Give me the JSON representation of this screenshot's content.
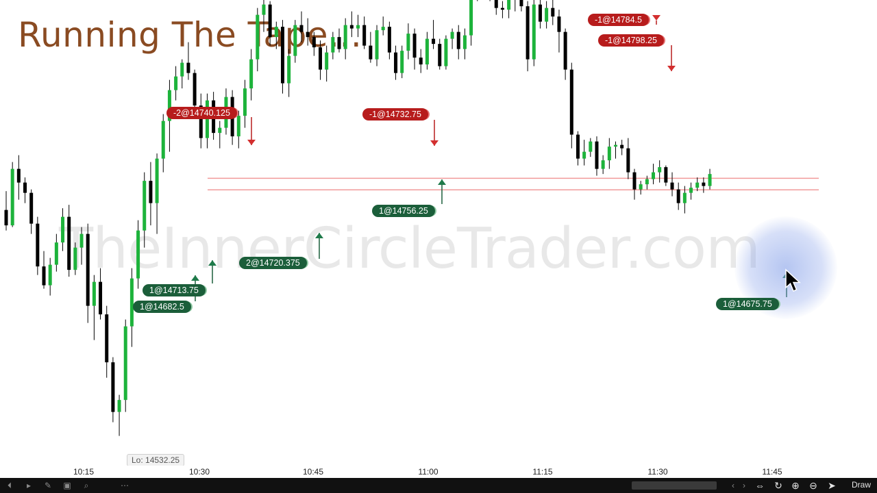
{
  "title": "Running The Tape...",
  "watermark": "TheInnerCircleTrader.com",
  "colors": {
    "bull": "#1db33b",
    "bear": "#000000",
    "sell_badge": "#b71c1c",
    "buy_badge": "#1b5e3a",
    "level_line": "#f19a9a",
    "title": "#8a4b22"
  },
  "chart_data": {
    "type": "candlestick",
    "x_ticks": [
      "10:15",
      "10:30",
      "10:45",
      "11:00",
      "11:15",
      "11:30",
      "11:45"
    ],
    "ylim": [
      14520,
      14800
    ],
    "grid": false,
    "candles": [
      [
        14664,
        14675,
        14652,
        14655
      ],
      [
        14655,
        14692,
        14654,
        14688
      ],
      [
        14688,
        14696,
        14670,
        14680
      ],
      [
        14680,
        14683,
        14668,
        14674
      ],
      [
        14674,
        14676,
        14650,
        14656
      ],
      [
        14656,
        14660,
        14626,
        14631
      ],
      [
        14631,
        14640,
        14618,
        14620
      ],
      [
        14620,
        14636,
        14614,
        14632
      ],
      [
        14632,
        14650,
        14628,
        14645
      ],
      [
        14645,
        14665,
        14640,
        14660
      ],
      [
        14660,
        14667,
        14625,
        14629
      ],
      [
        14629,
        14645,
        14626,
        14642
      ],
      [
        14642,
        14654,
        14632,
        14650
      ],
      [
        14650,
        14656,
        14598,
        14608
      ],
      [
        14608,
        14626,
        14588,
        14622
      ],
      [
        14622,
        14630,
        14600,
        14603
      ],
      [
        14603,
        14608,
        14566,
        14575
      ],
      [
        14575,
        14578,
        14540,
        14546
      ],
      [
        14546,
        14556,
        14532,
        14553
      ],
      [
        14553,
        14600,
        14546,
        14596
      ],
      [
        14596,
        14630,
        14584,
        14624
      ],
      [
        14624,
        14658,
        14618,
        14652
      ],
      [
        14652,
        14686,
        14642,
        14681
      ],
      [
        14681,
        14692,
        14655,
        14668
      ],
      [
        14668,
        14697,
        14650,
        14694
      ],
      [
        14694,
        14720,
        14686,
        14716
      ],
      [
        14716,
        14740,
        14698,
        14734
      ],
      [
        14734,
        14748,
        14728,
        14742
      ],
      [
        14742,
        14752,
        14735,
        14750
      ],
      [
        14750,
        14762,
        14740,
        14744
      ],
      [
        14744,
        14746,
        14720,
        14725
      ],
      [
        14725,
        14732,
        14700,
        14706
      ],
      [
        14706,
        14732,
        14700,
        14728
      ],
      [
        14728,
        14733,
        14705,
        14709
      ],
      [
        14709,
        14716,
        14700,
        14712
      ],
      [
        14712,
        14735,
        14708,
        14730
      ],
      [
        14730,
        14734,
        14702,
        14707
      ],
      [
        14707,
        14722,
        14700,
        14719
      ],
      [
        14719,
        14740,
        14712,
        14735
      ],
      [
        14735,
        14758,
        14728,
        14752
      ],
      [
        14752,
        14782,
        14745,
        14778
      ],
      [
        14778,
        14789,
        14768,
        14784
      ],
      [
        14784,
        14786,
        14760,
        14765
      ],
      [
        14765,
        14774,
        14758,
        14771
      ],
      [
        14771,
        14775,
        14732,
        14738
      ],
      [
        14738,
        14758,
        14730,
        14754
      ],
      [
        14754,
        14775,
        14750,
        14772
      ],
      [
        14772,
        14780,
        14762,
        14768
      ],
      [
        14768,
        14776,
        14760,
        14765
      ],
      [
        14765,
        14768,
        14754,
        14759
      ],
      [
        14759,
        14763,
        14740,
        14746
      ],
      [
        14746,
        14760,
        14739,
        14756
      ],
      [
        14756,
        14768,
        14752,
        14765
      ],
      [
        14765,
        14770,
        14756,
        14758
      ],
      [
        14758,
        14776,
        14752,
        14772
      ],
      [
        14772,
        14780,
        14765,
        14770
      ],
      [
        14770,
        14778,
        14765,
        14772
      ],
      [
        14772,
        14777,
        14758,
        14760
      ],
      [
        14760,
        14768,
        14750,
        14752
      ],
      [
        14752,
        14772,
        14748,
        14769
      ],
      [
        14769,
        14777,
        14766,
        14771
      ],
      [
        14771,
        14774,
        14752,
        14756
      ],
      [
        14756,
        14760,
        14740,
        14744
      ],
      [
        14744,
        14760,
        14741,
        14757
      ],
      [
        14757,
        14773,
        14752,
        14767
      ],
      [
        14767,
        14770,
        14746,
        14753
      ],
      [
        14753,
        14758,
        14744,
        14749
      ],
      [
        14749,
        14768,
        14746,
        14764
      ],
      [
        14764,
        14775,
        14758,
        14761
      ],
      [
        14761,
        14764,
        14746,
        14748
      ],
      [
        14748,
        14766,
        14746,
        14764
      ],
      [
        14764,
        14770,
        14758,
        14768
      ],
      [
        14768,
        14772,
        14752,
        14758
      ],
      [
        14758,
        14770,
        14752,
        14766
      ],
      [
        14766,
        14795,
        14760,
        14791
      ],
      [
        14791,
        14796,
        14786,
        14793
      ],
      [
        14793,
        14798,
        14790,
        14795
      ],
      [
        14795,
        14797,
        14786,
        14788
      ],
      [
        14788,
        14793,
        14778,
        14782
      ],
      [
        14782,
        14786,
        14776,
        14781
      ],
      [
        14781,
        14790,
        14776,
        14787
      ],
      [
        14787,
        14797,
        14780,
        14791
      ],
      [
        14791,
        14792,
        14780,
        14783
      ],
      [
        14783,
        14786,
        14745,
        14752
      ],
      [
        14752,
        14788,
        14748,
        14784
      ],
      [
        14784,
        14790,
        14770,
        14774
      ],
      [
        14774,
        14786,
        14770,
        14782
      ],
      [
        14782,
        14788,
        14772,
        14777
      ],
      [
        14777,
        14781,
        14756,
        14768
      ],
      [
        14768,
        14770,
        14740,
        14746
      ],
      [
        14746,
        14750,
        14700,
        14708
      ],
      [
        14708,
        14710,
        14690,
        14694
      ],
      [
        14694,
        14705,
        14690,
        14698
      ],
      [
        14698,
        14706,
        14695,
        14704
      ],
      [
        14704,
        14707,
        14684,
        14688
      ],
      [
        14688,
        14696,
        14685,
        14693
      ],
      [
        14693,
        14706,
        14688,
        14701
      ],
      [
        14701,
        14704,
        14694,
        14702
      ],
      [
        14702,
        14705,
        14696,
        14700
      ],
      [
        14700,
        14706,
        14682,
        14686
      ],
      [
        14686,
        14688,
        14670,
        14676
      ],
      [
        14676,
        14681,
        14673,
        14679
      ],
      [
        14679,
        14684,
        14676,
        14682
      ],
      [
        14682,
        14691,
        14679,
        14686
      ],
      [
        14686,
        14693,
        14680,
        14689
      ],
      [
        14689,
        14690,
        14678,
        14680
      ],
      [
        14680,
        14686,
        14672,
        14676
      ],
      [
        14676,
        14680,
        14664,
        14668
      ],
      [
        14668,
        14678,
        14662,
        14674
      ],
      [
        14674,
        14680,
        14670,
        14677
      ],
      [
        14677,
        14683,
        14675,
        14680
      ],
      [
        14680,
        14683,
        14674,
        14678
      ],
      [
        14678,
        14688,
        14676,
        14685
      ]
    ],
    "levels": [
      14682.5,
      14675.75
    ],
    "low_label": "Lo: 14532.25",
    "annotations": [
      {
        "text": "-2@14740.125",
        "side": "sell"
      },
      {
        "text": "-1@14732.75",
        "side": "sell"
      },
      {
        "text": "-1@14784.5",
        "side": "sell"
      },
      {
        "text": "-1@14798.25",
        "side": "sell"
      },
      {
        "text": "1@14756.25",
        "side": "buy"
      },
      {
        "text": "2@14720.375",
        "side": "buy"
      },
      {
        "text": "1@14713.75",
        "side": "buy"
      },
      {
        "text": "1@14682.5",
        "side": "buy"
      },
      {
        "text": "1@14675.75",
        "side": "buy"
      }
    ]
  },
  "toolbar": {
    "left_icons": [
      "back-icon",
      "play-icon",
      "pencil-icon",
      "screenshot-icon",
      "magnifier-icon",
      "more-icon"
    ],
    "right_icons": [
      "scroll-arrows-icon",
      "reset-icon",
      "zoom-in-icon",
      "zoom-out-icon",
      "pointer-icon"
    ],
    "draw_label": "Draw"
  }
}
